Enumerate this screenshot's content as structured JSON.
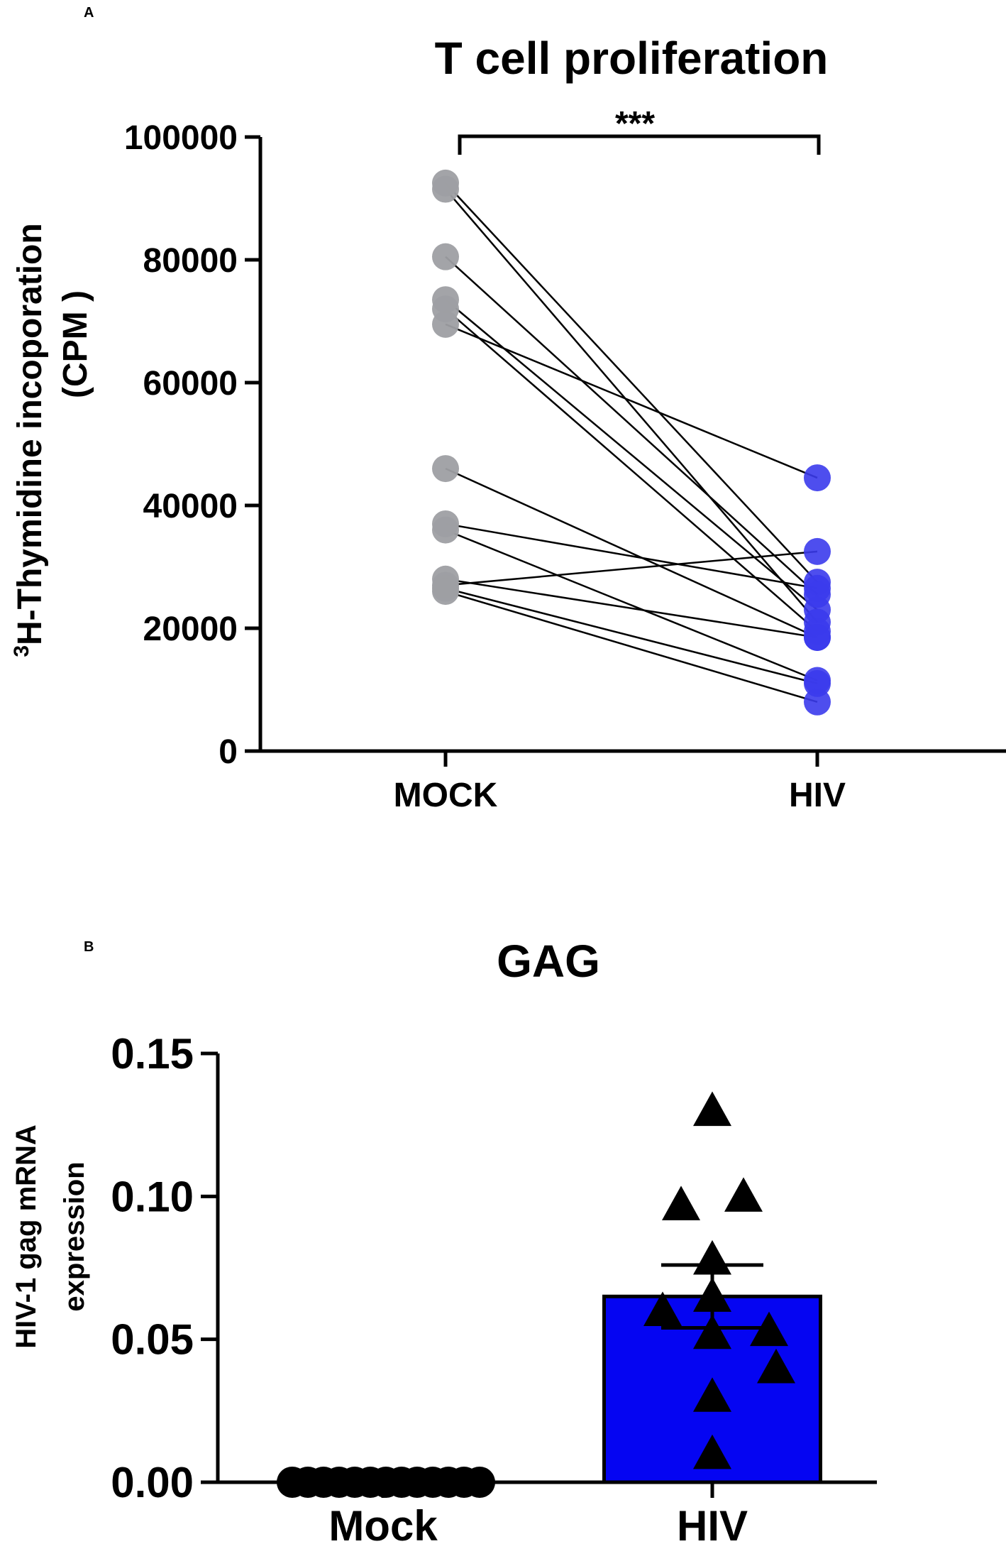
{
  "chart_data": [
    {
      "panel": "A",
      "type": "scatter",
      "title": "T cell proliferation",
      "ylabel_sup": "3",
      "ylabel_line1": "H-Thymidine incoporation",
      "ylabel_line2": "(CPM )",
      "ylim": [
        0,
        100000
      ],
      "yticks": [
        0,
        20000,
        40000,
        60000,
        80000,
        100000
      ],
      "yticklabels": [
        "0",
        "20000",
        "40000",
        "60000",
        "80000",
        "100000"
      ],
      "categories": [
        "MOCK",
        "HIV"
      ],
      "significance": "***",
      "pairs": [
        {
          "mock": 92500,
          "hiv": 27500
        },
        {
          "mock": 91500,
          "hiv": 21000
        },
        {
          "mock": 80500,
          "hiv": 25500
        },
        {
          "mock": 73500,
          "hiv": 23000
        },
        {
          "mock": 72000,
          "hiv": 19500
        },
        {
          "mock": 69500,
          "hiv": 44500
        },
        {
          "mock": 46000,
          "hiv": 18500
        },
        {
          "mock": 37000,
          "hiv": 26500
        },
        {
          "mock": 36000,
          "hiv": 11500
        },
        {
          "mock": 28000,
          "hiv": 18500
        },
        {
          "mock": 27000,
          "hiv": 32500
        },
        {
          "mock": 26500,
          "hiv": 11000
        },
        {
          "mock": 26000,
          "hiv": 8000
        }
      ],
      "colors": {
        "mock": "#9e9fa3",
        "hiv": "#3b3bec",
        "line": "#000000"
      }
    },
    {
      "panel": "B",
      "type": "bar",
      "title": "GAG",
      "ylabel_line1": "HIV-1 gag mRNA",
      "ylabel_line2": "expression",
      "ylim": [
        0,
        0.15
      ],
      "yticks": [
        0,
        0.05,
        0.1,
        0.15
      ],
      "yticklabels": [
        "0.00",
        "0.05",
        "0.10",
        "0.15"
      ],
      "categories": [
        "Mock",
        "HIV"
      ],
      "values": [
        0,
        0.065
      ],
      "error": [
        0,
        0.011
      ],
      "mock_points": [
        0,
        0,
        0,
        0,
        0,
        0,
        0,
        0,
        0,
        0,
        0,
        0,
        0
      ],
      "hiv_points": [
        0.13,
        0.1,
        0.097,
        0.078,
        0.065,
        0.06,
        0.053,
        0.052,
        0.04,
        0.03,
        0.01
      ],
      "colors": {
        "bar": "#0505f2",
        "marker": "#000000"
      }
    }
  ]
}
